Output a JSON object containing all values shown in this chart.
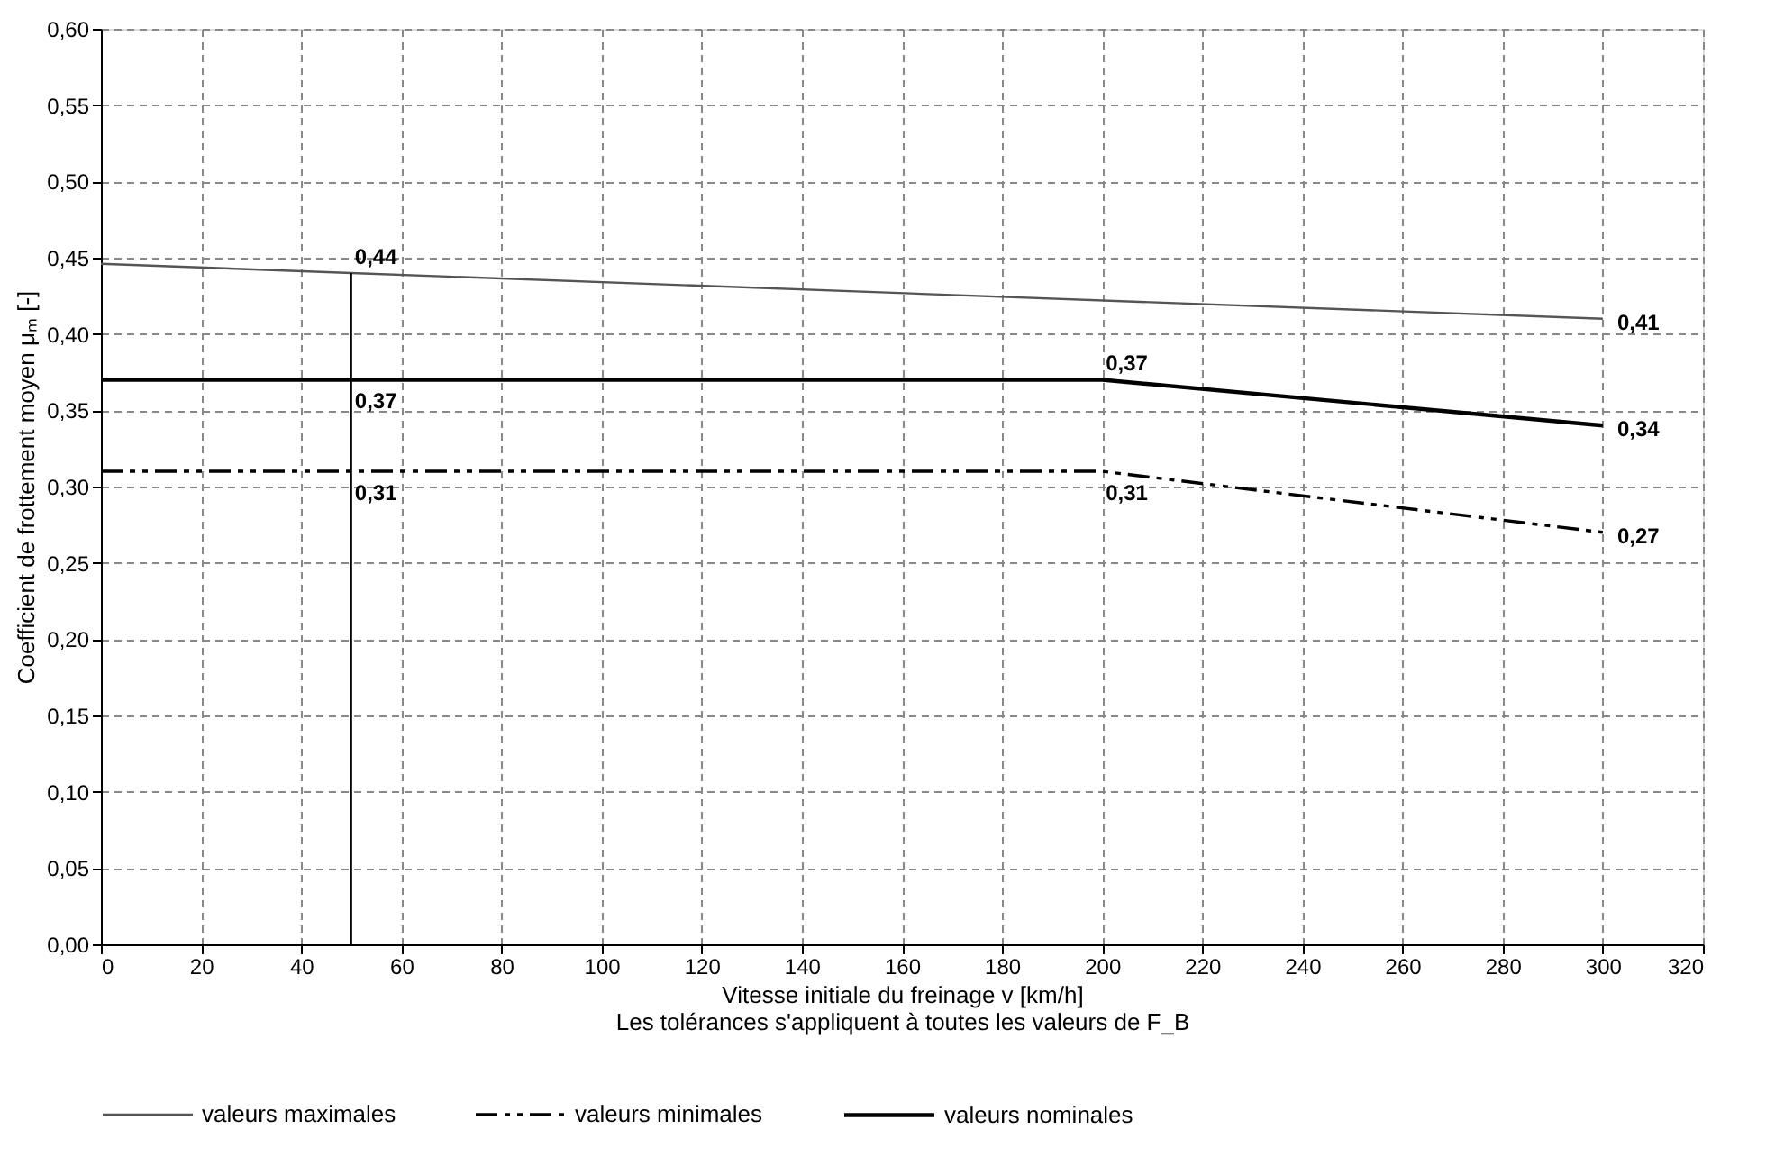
{
  "chart_data": {
    "type": "line",
    "xlabel": "Vitesse initiale du freinage v [km/h]",
    "ylabel": "Coefficient de frottement moyen μₘ [-]",
    "xlim": [
      0,
      320
    ],
    "xticks": [
      0,
      20,
      40,
      60,
      80,
      100,
      120,
      140,
      160,
      180,
      200,
      220,
      240,
      260,
      280,
      300,
      320
    ],
    "ylim": [
      0,
      0.6
    ],
    "yticks": [
      {
        "value": 0,
        "label": "0,00"
      },
      {
        "value": 0.05,
        "label": "0,05"
      },
      {
        "value": 0.1,
        "label": "0,10"
      },
      {
        "value": 0.15,
        "label": "0,15"
      },
      {
        "value": 0.2,
        "label": "0,20"
      },
      {
        "value": 0.25,
        "label": "0,25"
      },
      {
        "value": 0.3,
        "label": "0,30"
      },
      {
        "value": 0.35,
        "label": "0,35"
      },
      {
        "value": 0.4,
        "label": "0,40"
      },
      {
        "value": 0.45,
        "label": "0,45"
      },
      {
        "value": 0.5,
        "label": "0,50"
      },
      {
        "value": 0.55,
        "label": "0,55"
      },
      {
        "value": 0.6,
        "label": "0,60"
      }
    ],
    "grid": true,
    "legend": "bottom",
    "series": [
      {
        "name": "valeurs maximales",
        "color": "#555555",
        "line_style": "solid",
        "x": [
          0,
          50,
          300
        ],
        "values": [
          0.446,
          0.44,
          0.41
        ]
      },
      {
        "name": "valeurs minimales",
        "color": "#000000",
        "line_style": "dashed",
        "x": [
          0,
          200,
          300
        ],
        "values": [
          0.31,
          0.31,
          0.27
        ]
      },
      {
        "name": "valeurs nominales",
        "color": "#000000",
        "line_style": "solid",
        "x": [
          0,
          200,
          300
        ],
        "values": [
          0.37,
          0.37,
          0.34
        ]
      },
      {
        "type": "line",
        "color": "#000000",
        "line_style": "solid",
        "x": [
          50,
          50
        ],
        "values": [
          0,
          0.44
        ]
      }
    ],
    "annotations": [
      "Les tolérances s'appliquent à toutes les valeurs de F_B",
      {
        "text": "0,44",
        "x": 50,
        "y": 0.44
      },
      {
        "text": "0,37",
        "x": 50,
        "y": 0.37
      },
      {
        "text": "0,31",
        "x": 50,
        "y": 0.31
      },
      {
        "text": "0,37",
        "x": 200,
        "y": 0.37
      },
      {
        "text": "0,31",
        "x": 200,
        "y": 0.31
      },
      {
        "text": "0,41",
        "x": 300,
        "y": 0.41
      },
      {
        "text": "0,34",
        "x": 300,
        "y": 0.34
      },
      {
        "text": "0,27",
        "x": 300,
        "y": 0.27
      }
    ]
  }
}
